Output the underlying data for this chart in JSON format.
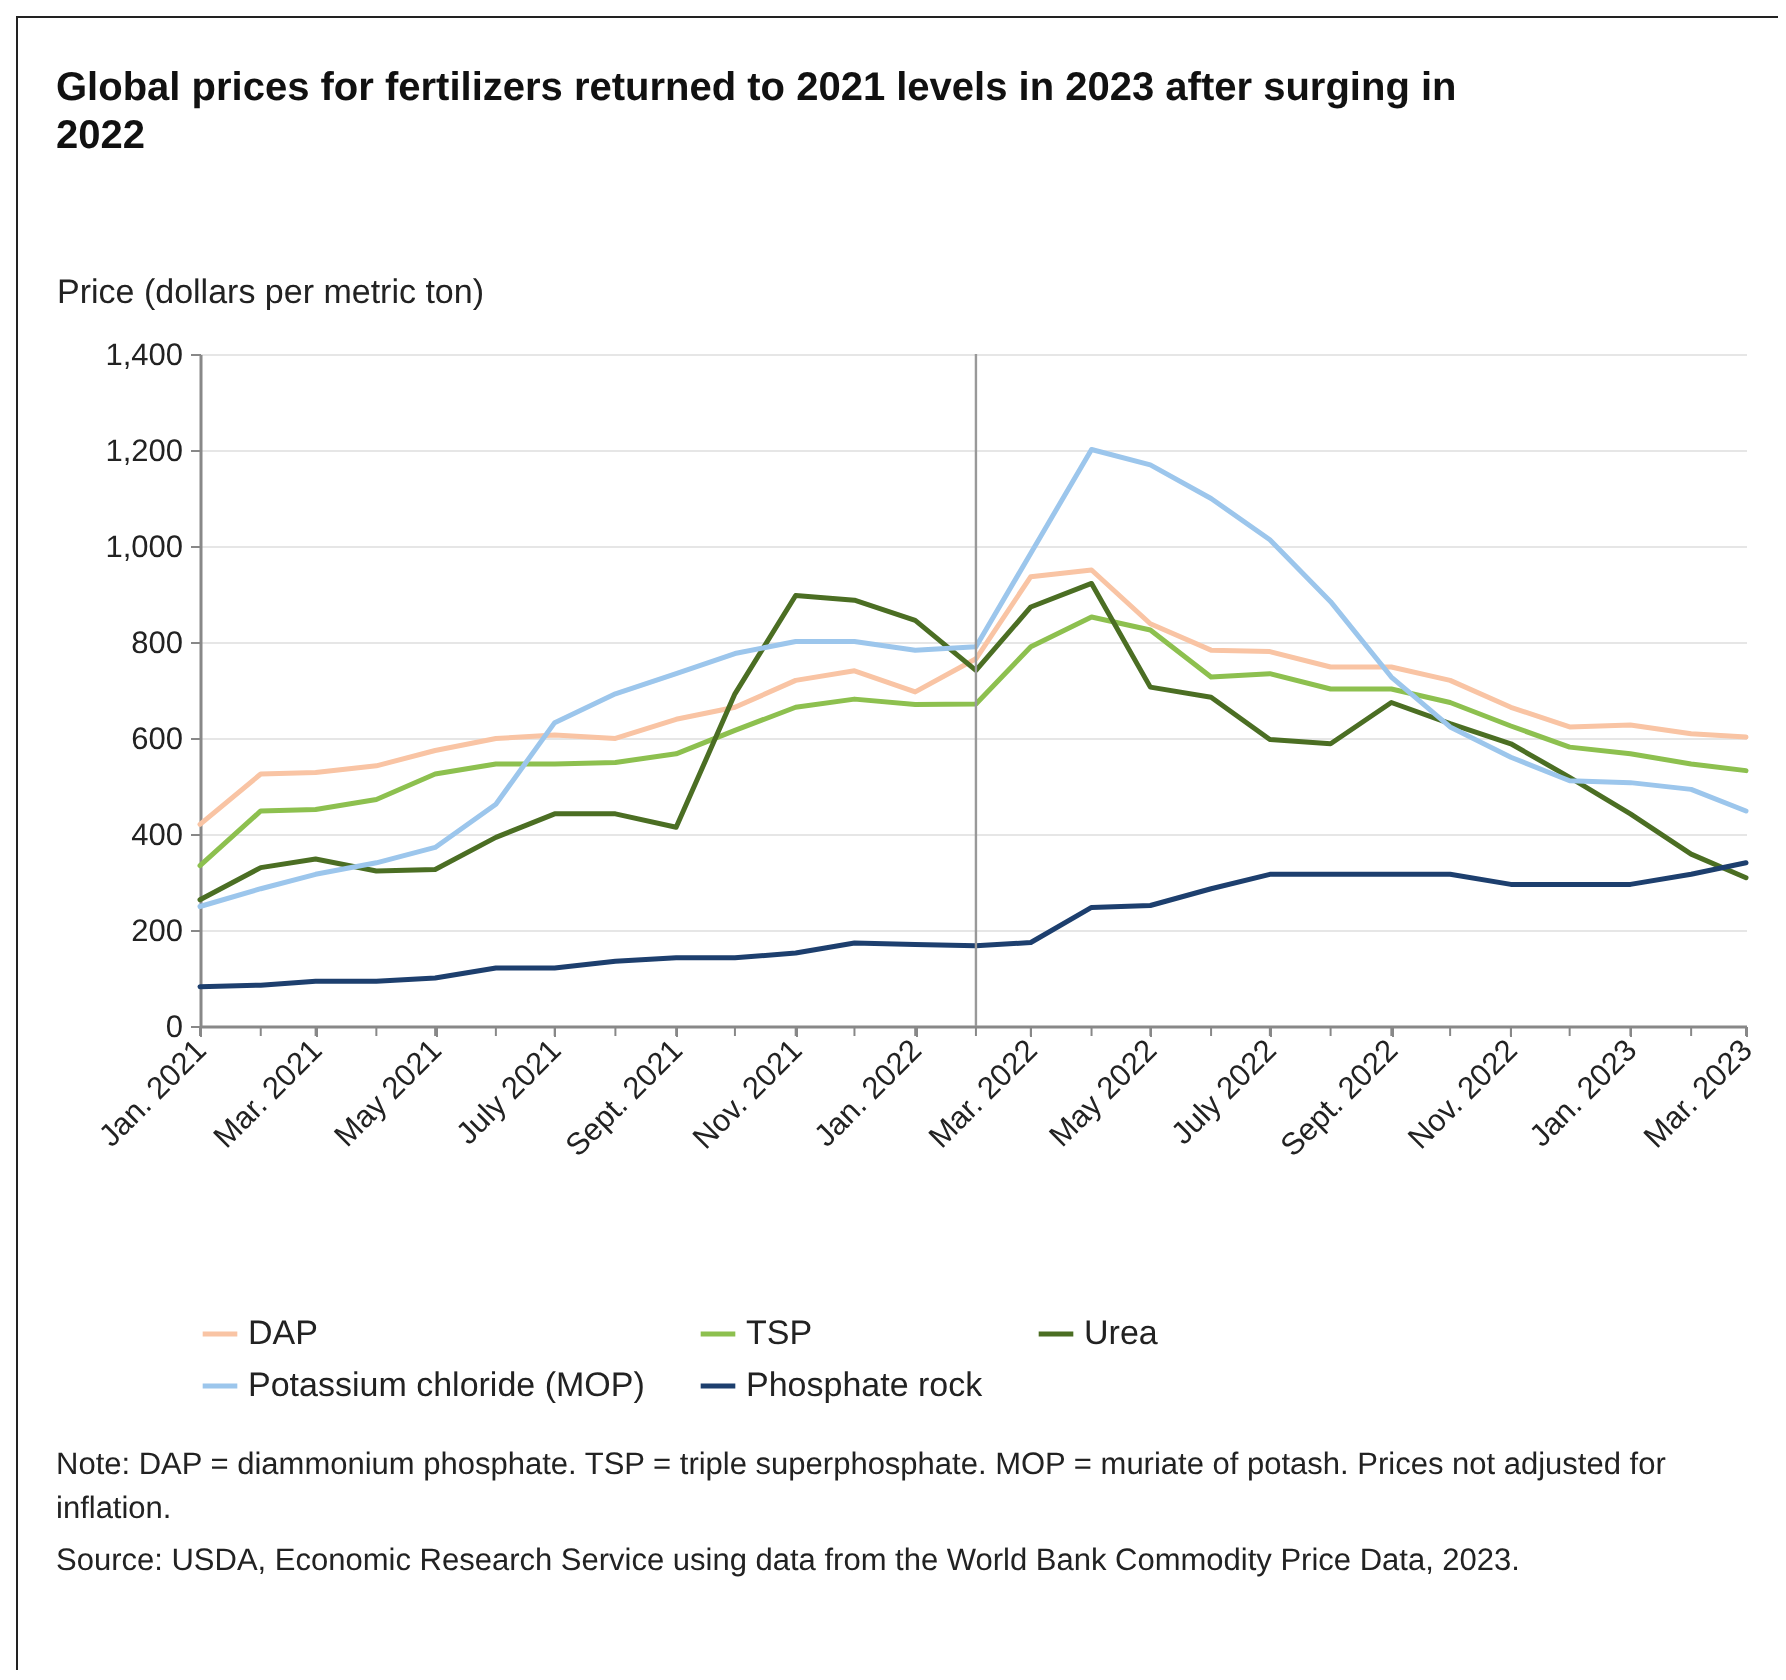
{
  "chart_data": {
    "type": "line",
    "title": "Global prices for fertilizers returned to 2021 levels in 2023 after surging in 2022",
    "ylabel": "Price (dollars per metric ton)",
    "x": [
      "2021-01",
      "2021-02",
      "2021-03",
      "2021-04",
      "2021-05",
      "2021-06",
      "2021-07",
      "2021-08",
      "2021-09",
      "2021-10",
      "2021-11",
      "2021-12",
      "2022-01",
      "2022-02",
      "2022-03",
      "2022-04",
      "2022-05",
      "2022-06",
      "2022-07",
      "2022-08",
      "2022-09",
      "2022-10",
      "2022-11",
      "2022-12",
      "2023-01",
      "2023-02",
      "2023-03"
    ],
    "series": [
      {
        "name": "DAP",
        "color": "#f9c4a4",
        "values": [
          420,
          525,
          528,
          542,
          574,
          599,
          606,
          599,
          639,
          664,
          720,
          740,
          696,
          765,
          936,
          950,
          838,
          783,
          780,
          748,
          748,
          720,
          664,
          623,
          627,
          609,
          602
        ]
      },
      {
        "name": "TSP",
        "color": "#8dc04f",
        "values": [
          334,
          448,
          451,
          472,
          525,
          546,
          546,
          549,
          567,
          616,
          664,
          681,
          670,
          671,
          790,
          852,
          825,
          727,
          734,
          702,
          702,
          674,
          625,
          581,
          567,
          546,
          532
        ]
      },
      {
        "name": "Urea",
        "color": "#4b6e23",
        "values": [
          263,
          330,
          348,
          323,
          326,
          393,
          442,
          442,
          414,
          692,
          897,
          887,
          845,
          741,
          873,
          922,
          706,
          685,
          597,
          588,
          674,
          630,
          588,
          518,
          442,
          358,
          309
        ]
      },
      {
        "name": "Potassium chloride (MOP)",
        "color": "#9cc6ec",
        "values": [
          249,
          286,
          316,
          340,
          372,
          462,
          632,
          692,
          734,
          776,
          801,
          801,
          783,
          790,
          985,
          1201,
          1169,
          1099,
          1013,
          884,
          727,
          623,
          560,
          511,
          507,
          493,
          448
        ]
      },
      {
        "name": "Phosphate rock",
        "color": "#1d3f6e",
        "values": [
          82,
          85,
          93,
          93,
          100,
          121,
          121,
          135,
          142,
          142,
          152,
          173,
          170,
          167,
          174,
          247,
          251,
          286,
          316,
          316,
          316,
          316,
          295,
          295,
          295,
          316,
          340
        ]
      }
    ],
    "xlim": [
      "2021-01",
      "2023-03"
    ],
    "xticks": [
      {
        "value": "2021-01",
        "label": "Jan. 2021"
      },
      {
        "value": "2021-02",
        "label": null
      },
      {
        "value": "2021-03",
        "label": "Mar. 2021"
      },
      {
        "value": "2021-04",
        "label": null
      },
      {
        "value": "2021-05",
        "label": "May 2021"
      },
      {
        "value": "2021-06",
        "label": null
      },
      {
        "value": "2021-07",
        "label": "July 2021"
      },
      {
        "value": "2021-08",
        "label": null
      },
      {
        "value": "2021-09",
        "label": "Sept. 2021"
      },
      {
        "value": "2021-10",
        "label": null
      },
      {
        "value": "2021-11",
        "label": "Nov. 2021"
      },
      {
        "value": "2021-12",
        "label": null
      },
      {
        "value": "2022-01",
        "label": "Jan. 2022"
      },
      {
        "value": "2022-02",
        "label": null
      },
      {
        "value": "2022-03",
        "label": "Mar. 2022"
      },
      {
        "value": "2022-04",
        "label": null
      },
      {
        "value": "2022-05",
        "label": "May 2022"
      },
      {
        "value": "2022-06",
        "label": null
      },
      {
        "value": "2022-07",
        "label": "July 2022"
      },
      {
        "value": "2022-08",
        "label": null
      },
      {
        "value": "2022-09",
        "label": "Sept. 2022"
      },
      {
        "value": "2022-10",
        "label": null
      },
      {
        "value": "2022-11",
        "label": "Nov. 2022"
      },
      {
        "value": "2022-12",
        "label": null
      },
      {
        "value": "2023-01",
        "label": "Jan. 2023"
      },
      {
        "value": "2023-02",
        "label": null
      },
      {
        "value": "2023-03",
        "label": "Mar. 2023"
      }
    ],
    "ylim": [
      0,
      1400
    ],
    "yticks": [
      0,
      200,
      400,
      600,
      800,
      {
        "value": 1000,
        "label": "1,000"
      },
      {
        "value": 1200,
        "label": "1,200"
      },
      {
        "value": 1400,
        "label": "1,400"
      }
    ],
    "ref_lines": [
      {
        "axis": "x",
        "value": "2022-02",
        "color": "#999999"
      }
    ],
    "grid": "y",
    "legend": "bottom",
    "marker": "none",
    "line_style": "solid",
    "annotations": [
      "Note: DAP = diammonium phosphate. TSP = triple superphosphate. MOP = muriate of potash. Prices not adjusted for inflation.",
      "Source: USDA, Economic Research Service using data from the World Bank Commodity Price Data, 2023."
    ]
  }
}
